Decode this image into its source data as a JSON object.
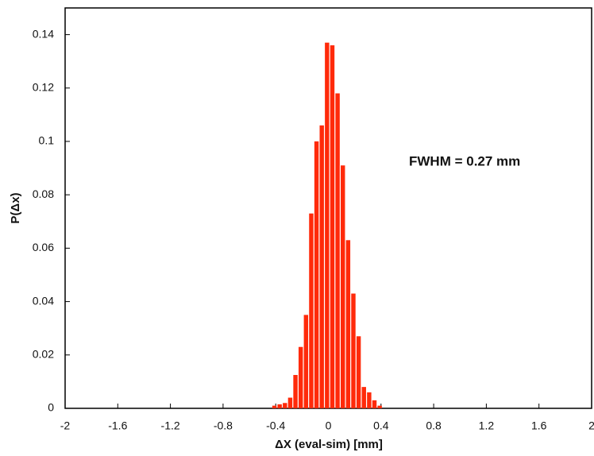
{
  "chart_data": {
    "type": "histogram",
    "x_label": "ΔX (eval-sim) [mm]",
    "y_label": "P(Δx)",
    "annotation": "FWHM = 0.27 mm",
    "color": "#ff2a0a",
    "bins": [
      -0.43,
      -0.39,
      -0.35,
      -0.31,
      -0.27,
      -0.23,
      -0.19,
      -0.15,
      -0.11,
      -0.07,
      -0.03,
      0.01,
      0.05,
      0.09,
      0.13,
      0.17,
      0.21,
      0.25,
      0.29,
      0.33,
      0.37,
      0.41
    ],
    "values": [
      0.001,
      0.0015,
      0.002,
      0.004,
      0.0125,
      0.023,
      0.035,
      0.073,
      0.1,
      0.106,
      0.137,
      0.136,
      0.118,
      0.091,
      0.063,
      0.043,
      0.027,
      0.008,
      0.006,
      0.003,
      0.001
    ],
    "xlim": [
      -2,
      2
    ],
    "xticks": [
      -2,
      -1.6,
      -1.2,
      -0.8,
      -0.4,
      0,
      0.4,
      0.8,
      1.2,
      1.6,
      2
    ],
    "ylim": [
      0,
      0.15
    ],
    "yticks": [
      0,
      0.02,
      0.04,
      0.06,
      0.08,
      0.1,
      0.12,
      0.14
    ]
  }
}
